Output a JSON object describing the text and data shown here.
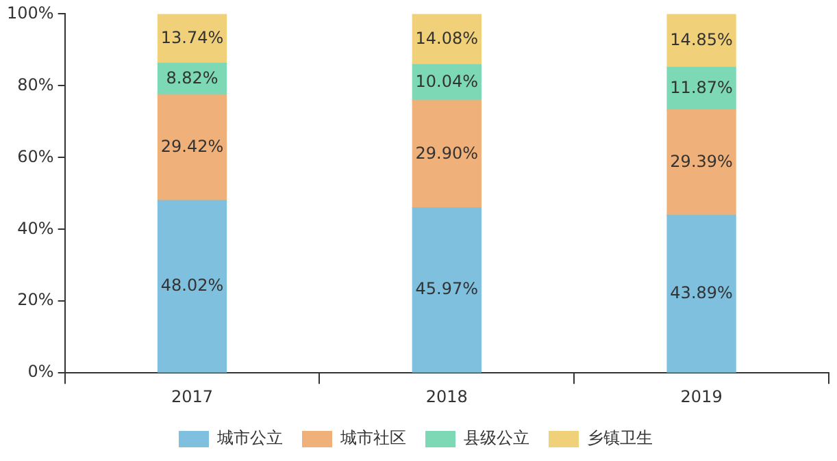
{
  "chart_data": {
    "type": "bar",
    "stacked": true,
    "categories": [
      "2017",
      "2018",
      "2019"
    ],
    "series": [
      {
        "name": "城市公立",
        "color": "#7ec0dd",
        "values": [
          48.02,
          45.97,
          43.89
        ],
        "value_labels": [
          "48.02%",
          "45.97%",
          "43.89%"
        ]
      },
      {
        "name": "城市社区",
        "color": "#f0b07a",
        "values": [
          29.42,
          29.9,
          29.39
        ],
        "value_labels": [
          "29.42%",
          "29.90%",
          "29.39%"
        ]
      },
      {
        "name": "县级公立",
        "color": "#7dd8b5",
        "values": [
          8.82,
          10.04,
          11.87
        ],
        "value_labels": [
          "8.82%",
          "10.04%",
          "11.87%"
        ]
      },
      {
        "name": "乡镇卫生",
        "color": "#f0d17a",
        "values": [
          13.74,
          14.08,
          14.85
        ],
        "value_labels": [
          "13.74%",
          "14.08%",
          "14.85%"
        ]
      }
    ],
    "ylim": [
      0,
      100
    ],
    "yticks": [
      {
        "value": 0,
        "label": "0%"
      },
      {
        "value": 20,
        "label": "20%"
      },
      {
        "value": 40,
        "label": "40%"
      },
      {
        "value": 60,
        "label": "60%"
      },
      {
        "value": 80,
        "label": "80%"
      },
      {
        "value": 100,
        "label": "100%"
      }
    ],
    "grid": false,
    "legend": "bottom"
  }
}
